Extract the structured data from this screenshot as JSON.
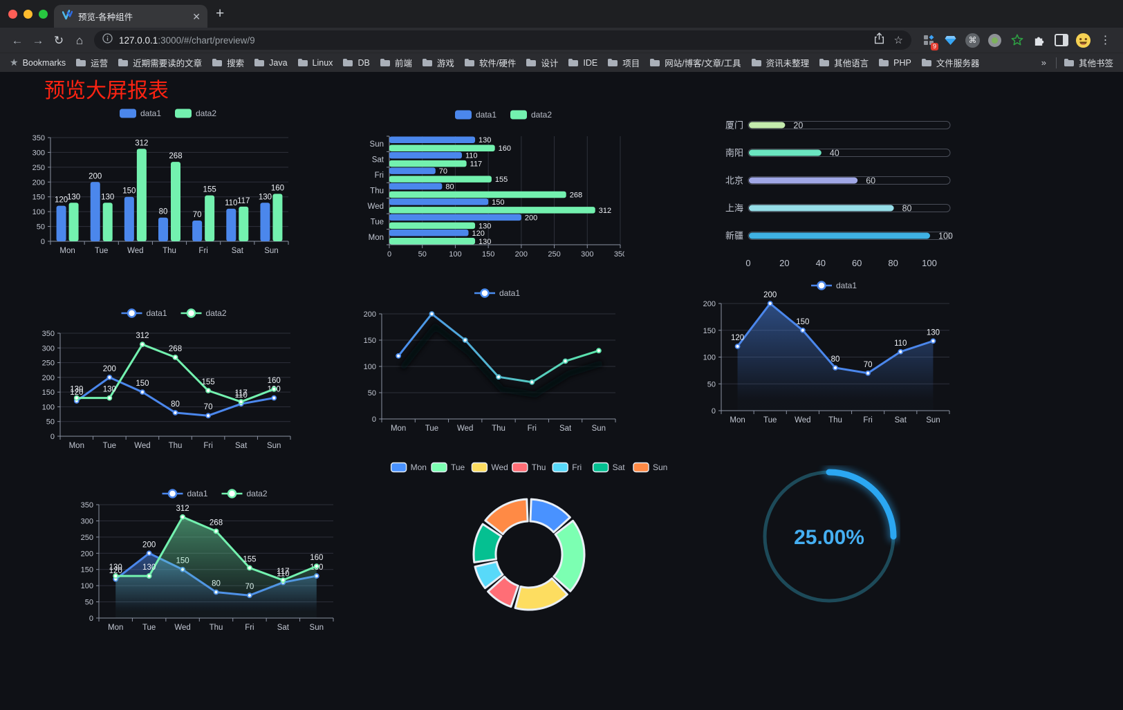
{
  "browser": {
    "tab_title": "预览-各种组件",
    "url_host": "127.0.0.1",
    "url_rest": ":3000/#/chart/preview/9",
    "bookmarks_label": "Bookmarks",
    "bookmark_folders": [
      "运营",
      "近期需要读的文章",
      "搜索",
      "Java",
      "Linux",
      "DB",
      "前端",
      "游戏",
      "软件/硬件",
      "设计",
      "IDE",
      "项目",
      "网站/博客/文章/工具",
      "资讯未整理",
      "其他语言",
      "PHP",
      "文件服务器"
    ],
    "overflow_chevron": "»",
    "other_bookmarks": "其他书签",
    "extension_badge": "9"
  },
  "page": {
    "title": "预览大屏报表",
    "title_color": "#fb2312"
  },
  "chart_data": [
    {
      "id": "grouped-bar",
      "type": "bar",
      "categories": [
        "Mon",
        "Tue",
        "Wed",
        "Thu",
        "Fri",
        "Sat",
        "Sun"
      ],
      "series": [
        {
          "name": "data1",
          "color": "#4b87ec",
          "values": [
            120,
            200,
            150,
            80,
            70,
            110,
            130
          ]
        },
        {
          "name": "data2",
          "color": "#73f1af",
          "values": [
            130,
            130,
            312,
            268,
            155,
            117,
            160
          ]
        }
      ],
      "ylim": [
        0,
        350
      ],
      "ystep": 50,
      "show_labels": true,
      "legend_position": "top",
      "grid": true
    },
    {
      "id": "horizontal-bar",
      "type": "bar",
      "orientation": "horizontal",
      "categories": [
        "Mon",
        "Tue",
        "Wed",
        "Thu",
        "Fri",
        "Sat",
        "Sun"
      ],
      "series": [
        {
          "name": "data1",
          "color": "#4b87ec",
          "values": [
            120,
            200,
            150,
            80,
            70,
            110,
            130
          ]
        },
        {
          "name": "data2",
          "color": "#73f1af",
          "values": [
            130,
            130,
            312,
            268,
            155,
            117,
            160
          ]
        }
      ],
      "xlim": [
        0,
        350
      ],
      "xstep": 50,
      "show_labels": true,
      "legend_position": "top",
      "grid": true
    },
    {
      "id": "city-progress",
      "type": "bar",
      "orientation": "progress",
      "categories": [
        "厦门",
        "南阳",
        "北京",
        "上海",
        "新疆"
      ],
      "values": [
        20,
        40,
        60,
        80,
        100
      ],
      "colors": [
        "#c4ebad",
        "#6be6c1",
        "#a0a7e6",
        "#96dee8",
        "#3fb1e3"
      ],
      "xticks": [
        0,
        20,
        40,
        60,
        80,
        100
      ],
      "xlim": [
        0,
        110
      ]
    },
    {
      "id": "dual-line",
      "type": "line",
      "categories": [
        "Mon",
        "Tue",
        "Wed",
        "Thu",
        "Fri",
        "Sat",
        "Sun"
      ],
      "series": [
        {
          "name": "data1",
          "color": "#4b87ec",
          "values": [
            120,
            200,
            150,
            80,
            70,
            110,
            130
          ]
        },
        {
          "name": "data2",
          "color": "#73f1af",
          "values": [
            130,
            130,
            312,
            268,
            155,
            117,
            160
          ]
        }
      ],
      "ylim": [
        0,
        350
      ],
      "ystep": 50,
      "show_labels": true,
      "legend_position": "top",
      "grid": true
    },
    {
      "id": "gradient-line",
      "type": "line",
      "categories": [
        "Mon",
        "Tue",
        "Wed",
        "Thu",
        "Fri",
        "Sat",
        "Sun"
      ],
      "series": [
        {
          "name": "data1",
          "gradient": [
            "#4a8df0",
            "#5be7a9"
          ],
          "values": [
            120,
            200,
            150,
            80,
            70,
            110,
            130
          ]
        }
      ],
      "ylim": [
        0,
        200
      ],
      "ystep": 50,
      "show_labels": false,
      "shadow": true,
      "legend_position": "top",
      "grid": true
    },
    {
      "id": "area-line",
      "type": "area",
      "categories": [
        "Mon",
        "Tue",
        "Wed",
        "Thu",
        "Fri",
        "Sat",
        "Sun"
      ],
      "series": [
        {
          "name": "data1",
          "color": "#4b87ec",
          "values": [
            120,
            200,
            150,
            80,
            70,
            110,
            130
          ],
          "area": true
        }
      ],
      "ylim": [
        0,
        200
      ],
      "ystep": 50,
      "show_labels": true,
      "legend_position": "top",
      "grid": true
    },
    {
      "id": "dual-area",
      "type": "area",
      "categories": [
        "Mon",
        "Tue",
        "Wed",
        "Thu",
        "Fri",
        "Sat",
        "Sun"
      ],
      "series": [
        {
          "name": "data1",
          "color": "#4b87ec",
          "values": [
            120,
            200,
            150,
            80,
            70,
            110,
            130
          ],
          "area": true
        },
        {
          "name": "data2",
          "color": "#73f1af",
          "values": [
            130,
            130,
            312,
            268,
            155,
            117,
            160
          ],
          "area": true
        }
      ],
      "ylim": [
        0,
        350
      ],
      "ystep": 50,
      "show_labels": true,
      "legend_position": "top",
      "grid": true
    },
    {
      "id": "week-donut",
      "type": "pie",
      "categories": [
        "Mon",
        "Tue",
        "Wed",
        "Thu",
        "Fri",
        "Sat",
        "Sun"
      ],
      "values": [
        120,
        200,
        150,
        80,
        70,
        110,
        130
      ],
      "colors": [
        "#4992ff",
        "#7cffb2",
        "#fddd60",
        "#ff6e76",
        "#58d9f9",
        "#05c091",
        "#ff8a45"
      ],
      "border_color": "#e8eef5",
      "donut": true,
      "legend_position": "top"
    },
    {
      "id": "percent-gauge",
      "type": "gauge",
      "value": 25,
      "label": "25.00%",
      "color": "#2ba7f2",
      "track_color": "#1d4a59",
      "text_color": "#45aff2"
    }
  ]
}
